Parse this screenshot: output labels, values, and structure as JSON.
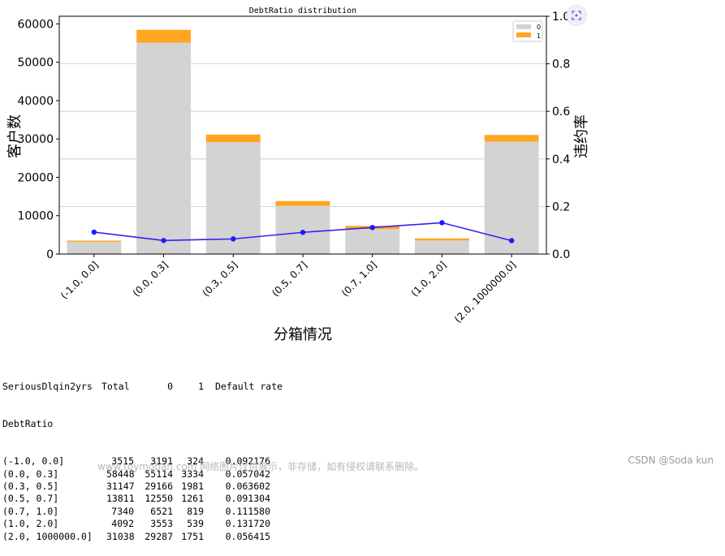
{
  "chart_data": {
    "type": "bar",
    "title": "DebtRatio distribution",
    "xlabel": "分箱情况",
    "ylabel": "客户数",
    "y2label": "违约率",
    "categories": [
      "(-1.0, 0.0]",
      "(0.0, 0.3]",
      "(0.3, 0.5]",
      "(0.5, 0.7]",
      "(0.7, 1.0]",
      "(1.0, 2.0]",
      "(2.0, 1000000.0]"
    ],
    "series": [
      {
        "name": "0",
        "type": "bar",
        "stacked": true,
        "color": "#d3d3d3",
        "values": [
          3191,
          55114,
          29166,
          12550,
          6521,
          3553,
          29287
        ]
      },
      {
        "name": "1",
        "type": "bar",
        "stacked": true,
        "color": "#ffa51f",
        "values": [
          324,
          3334,
          1981,
          1261,
          819,
          539,
          1751
        ]
      },
      {
        "type": "line",
        "axis": "right",
        "color": "#3a1ef5",
        "values": [
          0.092176,
          0.057042,
          0.063602,
          0.091304,
          0.11158,
          0.13172,
          0.056415
        ]
      }
    ],
    "yticks": [
      "0",
      "10000",
      "20000",
      "30000",
      "40000",
      "50000",
      "60000"
    ],
    "y2ticks": [
      "0.0",
      "0.2",
      "0.4",
      "0.6",
      "0.8",
      "1.0"
    ],
    "ylim": [
      0,
      62000
    ],
    "y2lim": [
      0,
      1.0
    ],
    "grid": "right-axis horizontal",
    "legend": "top-right"
  },
  "table": {
    "header": [
      "SeriousDlqin2yrs",
      "Total",
      "0",
      "1",
      "Default rate"
    ],
    "index_name": "DebtRatio",
    "rows": [
      [
        "(-1.0, 0.0]",
        "3515",
        "3191",
        "324",
        "0.092176"
      ],
      [
        "(0.0, 0.3]",
        "58448",
        "55114",
        "3334",
        "0.057042"
      ],
      [
        "(0.3, 0.5]",
        "31147",
        "29166",
        "1981",
        "0.063602"
      ],
      [
        "(0.5, 0.7]",
        "13811",
        "12550",
        "1261",
        "0.091304"
      ],
      [
        "(0.7, 1.0]",
        "7340",
        "6521",
        "819",
        "0.111580"
      ],
      [
        "(1.0, 2.0]",
        "4092",
        "3553",
        "539",
        "0.131720"
      ],
      [
        "(2.0, 1000000.0]",
        "31038",
        "29287",
        "1751",
        "0.056415"
      ]
    ]
  },
  "watermarks": {
    "left": "www.toymoban.com 网络图片仅供展示，非存储，如有侵权请联系删除。",
    "right": "CSDN @Soda kun"
  },
  "icons": {
    "expand": "expand-icon"
  }
}
